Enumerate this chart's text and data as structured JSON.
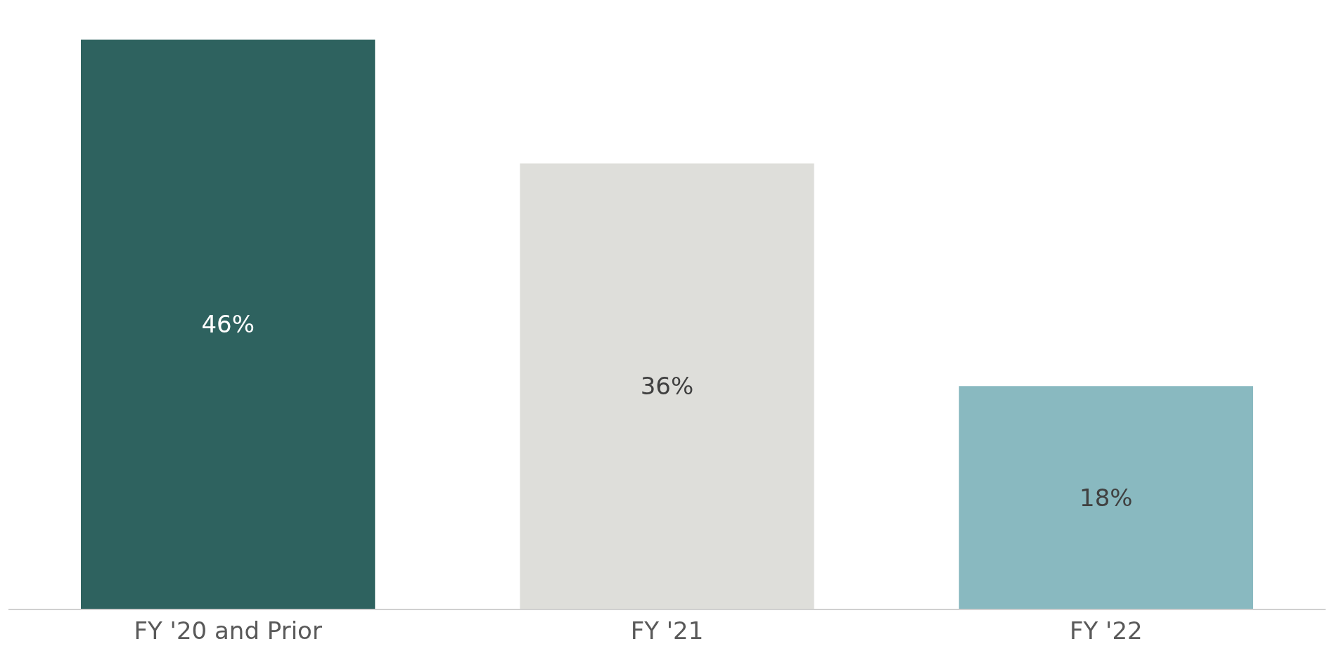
{
  "chart_data": {
    "type": "bar",
    "categories": [
      "FY '20 and Prior",
      "FY '21",
      "FY '22"
    ],
    "values": [
      46,
      36,
      18
    ],
    "colors": [
      "#2e625f",
      "#dededa",
      "#89b9c0"
    ],
    "value_labels": [
      "46%",
      "36%",
      "18%"
    ]
  }
}
